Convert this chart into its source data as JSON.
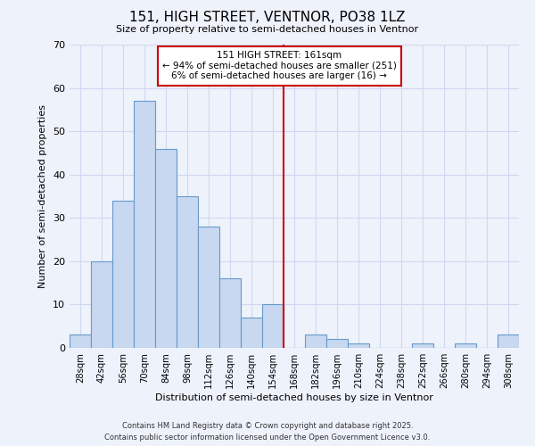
{
  "title": "151, HIGH STREET, VENTNOR, PO38 1LZ",
  "subtitle": "Size of property relative to semi-detached houses in Ventnor",
  "xlabel": "Distribution of semi-detached houses by size in Ventnor",
  "ylabel": "Number of semi-detached properties",
  "bin_labels": [
    "28sqm",
    "42sqm",
    "56sqm",
    "70sqm",
    "84sqm",
    "98sqm",
    "112sqm",
    "126sqm",
    "140sqm",
    "154sqm",
    "168sqm",
    "182sqm",
    "196sqm",
    "210sqm",
    "224sqm",
    "238sqm",
    "252sqm",
    "266sqm",
    "280sqm",
    "294sqm",
    "308sqm"
  ],
  "bar_values": [
    3,
    20,
    34,
    57,
    46,
    35,
    28,
    16,
    7,
    10,
    0,
    3,
    2,
    1,
    0,
    0,
    1,
    0,
    1,
    0,
    3
  ],
  "bar_color": "#c8d8f0",
  "bar_edge_color": "#6699cc",
  "vline_color": "#cc0000",
  "annotation_title": "151 HIGH STREET: 161sqm",
  "annotation_line1": "← 94% of semi-detached houses are smaller (251)",
  "annotation_line2": "6% of semi-detached houses are larger (16) →",
  "annotation_box_color": "#ffffff",
  "annotation_box_edge": "#cc0000",
  "ylim": [
    0,
    70
  ],
  "yticks": [
    0,
    10,
    20,
    30,
    40,
    50,
    60,
    70
  ],
  "footer1": "Contains HM Land Registry data © Crown copyright and database right 2025.",
  "footer2": "Contains public sector information licensed under the Open Government Licence v3.0.",
  "background_color": "#eef2fb",
  "grid_color": "#d0d8f0"
}
